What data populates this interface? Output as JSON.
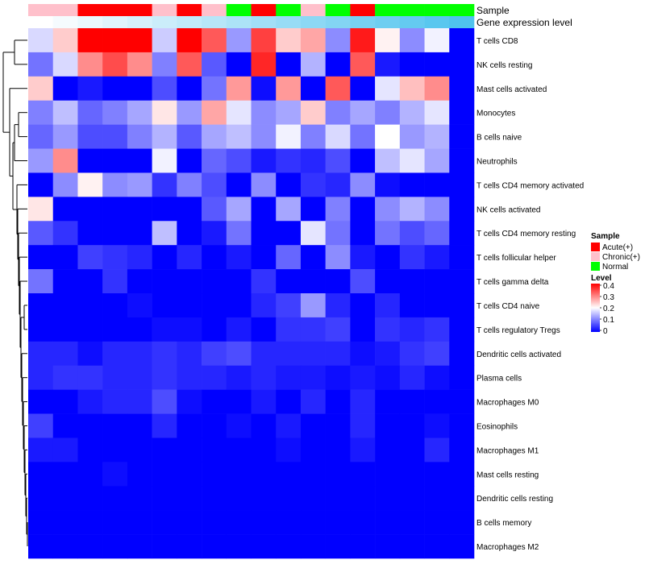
{
  "chart_data": {
    "type": "heatmap",
    "annotation_tracks": [
      {
        "name": "Sample",
        "values": [
          "Chronic(+)",
          "Chronic(+)",
          "Acute(+)",
          "Acute(+)",
          "Acute(+)",
          "Chronic(+)",
          "Acute(+)",
          "Chronic(+)",
          "Normal",
          "Acute(+)",
          "Normal",
          "Chronic(+)",
          "Normal",
          "Acute(+)",
          "Normal",
          "Normal",
          "Normal",
          "Normal"
        ]
      },
      {
        "name": "Gene expression level",
        "values": [
          0.02,
          0.04,
          0.06,
          0.08,
          0.1,
          0.12,
          0.14,
          0.16,
          0.18,
          0.2,
          0.22,
          0.24,
          0.26,
          0.28,
          0.3,
          0.32,
          0.34,
          0.36
        ]
      }
    ],
    "rows": [
      "T cells CD8",
      "NK cells resting",
      "Mast cells activated",
      "Monocytes",
      "B cells naive",
      "Neutrophils",
      "T cells CD4 memory activated",
      "NK cells activated",
      "T cells CD4 memory resting",
      "T cells follicular helper",
      "T cells gamma delta",
      "T cells CD4 naive",
      "T cells regulatory  Tregs",
      "Dendritic cells activated",
      "Plasma cells",
      "Macrophages M0",
      "Eosinophils",
      "Macrophages M1",
      "Mast cells resting",
      "Dendritic cells resting",
      "B cells memory",
      "Macrophages M2"
    ],
    "values": [
      [
        0.17,
        0.24,
        0.4,
        0.4,
        0.4,
        0.16,
        0.4,
        0.33,
        0.12,
        0.35,
        0.24,
        0.27,
        0.11,
        0.38,
        0.21,
        0.11,
        0.19,
        0.0
      ],
      [
        0.09,
        0.17,
        0.29,
        0.34,
        0.29,
        0.1,
        0.33,
        0.07,
        0.0,
        0.37,
        0.0,
        0.14,
        0.0,
        0.33,
        0.02,
        0.0,
        0.0,
        0.0
      ],
      [
        0.24,
        0.0,
        0.02,
        0.0,
        0.0,
        0.06,
        0.0,
        0.09,
        0.28,
        0.01,
        0.28,
        0.0,
        0.33,
        0.0,
        0.18,
        0.25,
        0.29,
        0.0
      ],
      [
        0.1,
        0.15,
        0.08,
        0.1,
        0.13,
        0.22,
        0.12,
        0.27,
        0.18,
        0.11,
        0.13,
        0.24,
        0.1,
        0.13,
        0.1,
        0.14,
        0.18,
        0.0
      ],
      [
        0.08,
        0.12,
        0.06,
        0.06,
        0.1,
        0.14,
        0.07,
        0.13,
        0.15,
        0.11,
        0.19,
        0.1,
        0.17,
        0.09,
        0.2,
        0.12,
        0.14,
        0.0
      ],
      [
        0.12,
        0.29,
        0.0,
        0.0,
        0.0,
        0.19,
        0.0,
        0.08,
        0.06,
        0.02,
        0.04,
        0.03,
        0.06,
        0.0,
        0.15,
        0.18,
        0.13,
        0.0
      ],
      [
        0.0,
        0.11,
        0.21,
        0.11,
        0.12,
        0.04,
        0.1,
        0.06,
        0.0,
        0.11,
        0.0,
        0.04,
        0.03,
        0.11,
        0.01,
        0.0,
        0.0,
        0.0
      ],
      [
        0.22,
        0.0,
        0.0,
        0.0,
        0.0,
        0.0,
        0.0,
        0.07,
        0.13,
        0.0,
        0.13,
        0.0,
        0.1,
        0.0,
        0.11,
        0.14,
        0.11,
        0.0
      ],
      [
        0.07,
        0.04,
        0.0,
        0.0,
        0.0,
        0.15,
        0.0,
        0.02,
        0.09,
        0.0,
        0.0,
        0.18,
        0.09,
        0.0,
        0.09,
        0.06,
        0.08,
        0.0
      ],
      [
        0.0,
        0.0,
        0.05,
        0.04,
        0.03,
        0.0,
        0.03,
        0.0,
        0.02,
        0.0,
        0.08,
        0.0,
        0.11,
        0.02,
        0.0,
        0.04,
        0.02,
        0.0
      ],
      [
        0.09,
        0.0,
        0.0,
        0.04,
        0.0,
        0.0,
        0.0,
        0.0,
        0.0,
        0.04,
        0.0,
        0.0,
        0.0,
        0.06,
        0.0,
        0.0,
        0.0,
        0.0
      ],
      [
        0.0,
        0.0,
        0.0,
        0.0,
        0.01,
        0.0,
        0.0,
        0.0,
        0.0,
        0.03,
        0.05,
        0.12,
        0.03,
        0.0,
        0.03,
        0.0,
        0.0,
        0.0
      ],
      [
        0.0,
        0.0,
        0.0,
        0.0,
        0.0,
        0.01,
        0.01,
        0.0,
        0.02,
        0.0,
        0.04,
        0.04,
        0.05,
        0.0,
        0.04,
        0.03,
        0.04,
        0.0
      ],
      [
        0.03,
        0.03,
        0.01,
        0.03,
        0.03,
        0.04,
        0.03,
        0.05,
        0.06,
        0.03,
        0.03,
        0.03,
        0.03,
        0.01,
        0.02,
        0.04,
        0.05,
        0.0
      ],
      [
        0.03,
        0.04,
        0.04,
        0.03,
        0.03,
        0.04,
        0.03,
        0.03,
        0.02,
        0.03,
        0.02,
        0.02,
        0.01,
        0.02,
        0.01,
        0.03,
        0.01,
        0.0
      ],
      [
        0.0,
        0.0,
        0.02,
        0.03,
        0.03,
        0.06,
        0.01,
        0.0,
        0.0,
        0.02,
        0.0,
        0.03,
        0.0,
        0.03,
        0.0,
        0.0,
        0.0,
        0.0
      ],
      [
        0.05,
        0.0,
        0.0,
        0.0,
        0.0,
        0.03,
        0.0,
        0.0,
        0.01,
        0.0,
        0.02,
        0.0,
        0.0,
        0.03,
        0.0,
        0.0,
        0.01,
        0.0
      ],
      [
        0.02,
        0.02,
        0.0,
        0.0,
        0.0,
        0.0,
        0.0,
        0.0,
        0.0,
        0.0,
        0.01,
        0.0,
        0.0,
        0.02,
        0.0,
        0.0,
        0.03,
        0.0
      ],
      [
        0.0,
        0.0,
        0.0,
        0.01,
        0.0,
        0.0,
        0.0,
        0.0,
        0.0,
        0.0,
        0.0,
        0.0,
        0.0,
        0.0,
        0.0,
        0.0,
        0.0,
        0.0
      ],
      [
        0.0,
        0.0,
        0.0,
        0.0,
        0.0,
        0.0,
        0.0,
        0.0,
        0.0,
        0.0,
        0.0,
        0.0,
        0.0,
        0.0,
        0.0,
        0.0,
        0.0,
        0.0
      ],
      [
        0.0,
        0.0,
        0.0,
        0.0,
        0.0,
        0.0,
        0.0,
        0.0,
        0.0,
        0.0,
        0.0,
        0.0,
        0.0,
        0.0,
        0.0,
        0.0,
        0.0,
        0.0
      ],
      [
        0.0,
        0.0,
        0.0,
        0.0,
        0.0,
        0.0,
        0.0,
        0.0,
        0.0,
        0.0,
        0.0,
        0.0,
        0.0,
        0.0,
        0.0,
        0.0,
        0.0,
        0.0
      ]
    ],
    "color_scale": {
      "min": 0,
      "mid": 0.2,
      "max": 0.4,
      "low_color": "#0000ff",
      "mid_color": "#ffffff",
      "high_color": "#ff0000"
    },
    "legends": {
      "sample": {
        "title": "Sample",
        "items": [
          {
            "label": "Acute(+)",
            "color": "#ff0000"
          },
          {
            "label": "Chronic(+)",
            "color": "#ffc0cb"
          },
          {
            "label": "Normal",
            "color": "#00ff00"
          }
        ]
      },
      "level": {
        "title": "Level",
        "ticks": [
          "0.4",
          "0.3",
          "0.2",
          "0.1",
          "0"
        ]
      }
    },
    "expression_colors": {
      "low": "#ffffff",
      "high": "#4fc3ee"
    },
    "row_dendrogram": true
  }
}
